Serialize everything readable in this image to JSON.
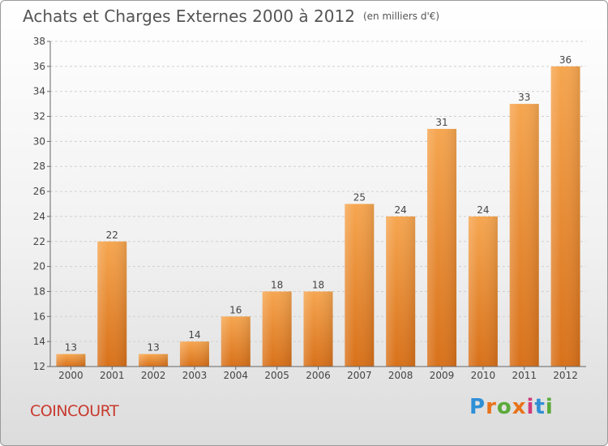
{
  "header": {
    "title": "Achats et Charges Externes 2000 à 2012",
    "unit": "(en milliers d'€)"
  },
  "footer": {
    "commune": "COINCOURT",
    "brand_letters": [
      "P",
      "r",
      "o",
      "x",
      "i",
      "t",
      "i"
    ],
    "brand_colors": [
      "#2f8fd6",
      "#e8731a",
      "#5aaa3a",
      "#e8731a",
      "#d13a7a",
      "#2f8fd6",
      "#5aaa3a"
    ]
  },
  "chart_data": {
    "type": "bar",
    "categories": [
      "2000",
      "2001",
      "2002",
      "2003",
      "2004",
      "2005",
      "2006",
      "2007",
      "2008",
      "2009",
      "2010",
      "2011",
      "2012"
    ],
    "values": [
      13,
      22,
      13,
      14,
      16,
      18,
      18,
      25,
      24,
      31,
      24,
      33,
      36
    ],
    "ylim": [
      12,
      38
    ],
    "yticks": [
      12,
      14,
      16,
      18,
      20,
      22,
      24,
      26,
      28,
      30,
      32,
      34,
      36,
      38
    ],
    "grid": true,
    "data_labels": true,
    "colors": {
      "bar_light": "#f6a650",
      "bar_dark": "#d8711a",
      "grid": "#cfcfcf",
      "axis": "#666666",
      "text": "#444444"
    }
  }
}
